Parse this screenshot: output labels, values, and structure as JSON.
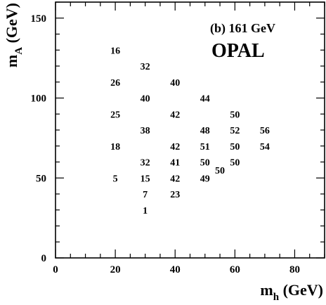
{
  "chart_data": {
    "type": "table",
    "panel_label": "(b) 161 GeV",
    "experiment": "OPAL",
    "xlabel": {
      "main": "m",
      "sub": "h",
      "unit": " (GeV)"
    },
    "ylabel": {
      "main": "m",
      "sub": "A",
      "unit": " (GeV)"
    },
    "xlim": [
      0,
      90
    ],
    "ylim": [
      0,
      160
    ],
    "x_ticks": [
      "0",
      "20",
      "40",
      "60",
      "80"
    ],
    "y_ticks": [
      "0",
      "50",
      "100",
      "150"
    ],
    "grid": false,
    "points": [
      {
        "x": 20,
        "y": 130,
        "label": "16"
      },
      {
        "x": 30,
        "y": 120,
        "label": "32"
      },
      {
        "x": 20,
        "y": 110,
        "label": "26"
      },
      {
        "x": 40,
        "y": 110,
        "label": "40"
      },
      {
        "x": 30,
        "y": 100,
        "label": "40"
      },
      {
        "x": 50,
        "y": 100,
        "label": "44"
      },
      {
        "x": 20,
        "y": 90,
        "label": "25"
      },
      {
        "x": 40,
        "y": 90,
        "label": "42"
      },
      {
        "x": 60,
        "y": 90,
        "label": "50"
      },
      {
        "x": 30,
        "y": 80,
        "label": "38"
      },
      {
        "x": 50,
        "y": 80,
        "label": "48"
      },
      {
        "x": 60,
        "y": 80,
        "label": "52"
      },
      {
        "x": 70,
        "y": 80,
        "label": "56"
      },
      {
        "x": 20,
        "y": 70,
        "label": "18"
      },
      {
        "x": 40,
        "y": 70,
        "label": "42"
      },
      {
        "x": 50,
        "y": 70,
        "label": "51"
      },
      {
        "x": 60,
        "y": 70,
        "label": "50"
      },
      {
        "x": 70,
        "y": 70,
        "label": "54"
      },
      {
        "x": 30,
        "y": 60,
        "label": "32"
      },
      {
        "x": 40,
        "y": 60,
        "label": "41"
      },
      {
        "x": 50,
        "y": 60,
        "label": "50"
      },
      {
        "x": 60,
        "y": 60,
        "label": "50"
      },
      {
        "x": 55,
        "y": 55,
        "label": "50"
      },
      {
        "x": 20,
        "y": 50,
        "label": "5"
      },
      {
        "x": 30,
        "y": 50,
        "label": "15"
      },
      {
        "x": 40,
        "y": 50,
        "label": "42"
      },
      {
        "x": 50,
        "y": 50,
        "label": "49"
      },
      {
        "x": 30,
        "y": 40,
        "label": "7"
      },
      {
        "x": 40,
        "y": 40,
        "label": "23"
      },
      {
        "x": 30,
        "y": 30,
        "label": "1"
      }
    ]
  }
}
